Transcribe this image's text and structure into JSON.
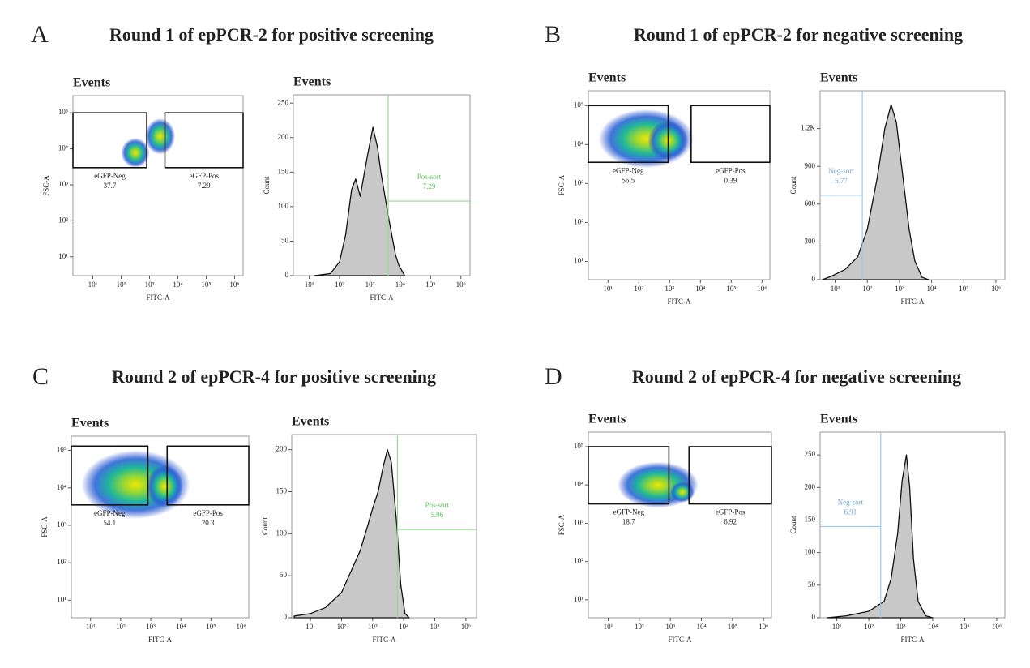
{
  "panels": [
    {
      "letter": "A",
      "title": "Round 1 of epPCR-2 for positive screening"
    },
    {
      "letter": "B",
      "title": "Round 1 of epPCR-2 for negative screening"
    },
    {
      "letter": "C",
      "title": "Round 2 of epPCR-4 for positive screening"
    },
    {
      "letter": "D",
      "title": "Round 2 of epPCR-4 for negative screening"
    }
  ],
  "chart_data": [
    {
      "type": "density-scatter",
      "title": "Events",
      "xlabel": "FITC-A",
      "ylabel": "FSC-A",
      "xscale": "log",
      "yscale": "log",
      "xlim": [
        2,
        2000000
      ],
      "ylim": [
        3,
        300000
      ],
      "xticks": [
        {
          "value": 10,
          "label": "10¹"
        },
        {
          "value": 100,
          "label": "10²"
        },
        {
          "value": 1000,
          "label": "10³"
        },
        {
          "value": 10000,
          "label": "10⁴"
        },
        {
          "value": 100000,
          "label": "10⁵"
        },
        {
          "value": 1000000,
          "label": "10⁶"
        }
      ],
      "yticks": [
        {
          "value": 10,
          "label": "10¹"
        },
        {
          "value": 100,
          "label": "10²"
        },
        {
          "value": 1000,
          "label": "10³"
        },
        {
          "value": 10000,
          "label": "10⁴"
        },
        {
          "value": 100000,
          "label": "10⁵"
        }
      ],
      "clouds": [
        {
          "x": [
            100,
            1000
          ],
          "y": [
            3000,
            20000
          ]
        },
        {
          "x": [
            700,
            8000
          ],
          "y": [
            7000,
            70000
          ]
        }
      ],
      "gates": [
        {
          "name": "eGFP-Neg",
          "value": 37.7,
          "x": [
            2,
            800
          ],
          "y": [
            3000,
            100000
          ]
        },
        {
          "name": "eGFP-Pos",
          "value": 7.29,
          "x": [
            3500,
            2000000
          ],
          "y": [
            3000,
            100000
          ]
        }
      ]
    },
    {
      "type": "area",
      "title": "Events",
      "xlabel": "FITC-A",
      "ylabel": "Count",
      "xscale": "log",
      "color": "#c8c8c8",
      "xlim": [
        3,
        2000000
      ],
      "ylim": [
        0,
        262
      ],
      "xticks": [
        {
          "value": 10,
          "label": "10¹"
        },
        {
          "value": 100,
          "label": "10²"
        },
        {
          "value": 1000,
          "label": "10³"
        },
        {
          "value": 10000,
          "label": "10⁴"
        },
        {
          "value": 100000,
          "label": "10⁵"
        },
        {
          "value": 1000000,
          "label": "10⁶"
        }
      ],
      "yticks": [
        0,
        50,
        100,
        150,
        200,
        250
      ],
      "x": [
        15,
        50,
        100,
        160,
        250,
        340,
        480,
        800,
        1260,
        1800,
        2300,
        4300,
        7000,
        9000,
        14000
      ],
      "values": [
        0,
        3,
        20,
        60,
        125,
        140,
        115,
        170,
        215,
        185,
        150,
        80,
        30,
        15,
        0
      ],
      "gate": {
        "name": "Pos-sort",
        "value": 7.29,
        "x": 4000,
        "y": 108,
        "color": "#8fdc8f",
        "side": "right"
      }
    },
    {
      "type": "density-scatter",
      "title": "Events",
      "xlabel": "FITC-A",
      "ylabel": "FSC-A",
      "xscale": "log",
      "yscale": "log",
      "xlim": [
        2.3,
        1800000
      ],
      "ylim": [
        3.4,
        240000
      ],
      "xticks": [
        {
          "value": 10,
          "label": "10¹"
        },
        {
          "value": 100,
          "label": "10²"
        },
        {
          "value": 1000,
          "label": "10³"
        },
        {
          "value": 10000,
          "label": "10⁴"
        },
        {
          "value": 100000,
          "label": "10⁵"
        },
        {
          "value": 1000000,
          "label": "10⁶"
        }
      ],
      "yticks": [
        {
          "value": 10,
          "label": "10¹"
        },
        {
          "value": 100,
          "label": "10²"
        },
        {
          "value": 1000,
          "label": "10³"
        },
        {
          "value": 10000,
          "label": "10⁴"
        },
        {
          "value": 100000,
          "label": "10⁵"
        }
      ],
      "clouds": [
        {
          "x": [
            5,
            6000
          ],
          "y": [
            2500,
            80000
          ]
        },
        {
          "x": [
            200,
            4000
          ],
          "y": [
            4000,
            40000
          ]
        }
      ],
      "gates": [
        {
          "name": "eGFP-Neg",
          "value": 56.5,
          "x": [
            2.3,
            900
          ],
          "y": [
            3500,
            100000
          ]
        },
        {
          "name": "eGFP-Pos",
          "value": 0.39,
          "x": [
            5000,
            1800000
          ],
          "y": [
            3500,
            100000
          ]
        }
      ]
    },
    {
      "type": "area",
      "title": "Events",
      "xlabel": "FITC-A",
      "ylabel": "Count",
      "xscale": "log",
      "color": "#c8c8c8",
      "xlim": [
        3.4,
        1900000
      ],
      "ylim": [
        0,
        1500
      ],
      "xticks": [
        {
          "value": 10,
          "label": "10¹"
        },
        {
          "value": 100,
          "label": "10²"
        },
        {
          "value": 1000,
          "label": "10³"
        },
        {
          "value": 10000,
          "label": "10⁴"
        },
        {
          "value": 100000,
          "label": "10⁵"
        },
        {
          "value": 1000000,
          "label": "10⁶"
        }
      ],
      "yticks": [
        0,
        300,
        600,
        900,
        {
          "value": 1200,
          "label": "1.2K"
        }
      ],
      "x": [
        4,
        8,
        20,
        50,
        100,
        200,
        350,
        550,
        800,
        1300,
        2000,
        3000,
        5000,
        8000
      ],
      "values": [
        0,
        30,
        80,
        180,
        400,
        800,
        1200,
        1390,
        1250,
        800,
        400,
        150,
        20,
        0
      ],
      "gate": {
        "name": "Neg-sort",
        "value": 5.77,
        "x": 70,
        "y": 670,
        "color": "#9ec8e8",
        "side": "left"
      }
    },
    {
      "type": "density-scatter",
      "title": "Events",
      "xlabel": "FITC-A",
      "ylabel": "FSC-A",
      "xscale": "log",
      "yscale": "log",
      "xlim": [
        2.3,
        1800000
      ],
      "ylim": [
        3.4,
        240000
      ],
      "xticks": [
        {
          "value": 10,
          "label": "10¹"
        },
        {
          "value": 100,
          "label": "10²"
        },
        {
          "value": 1000,
          "label": "10³"
        },
        {
          "value": 10000,
          "label": "10⁴"
        },
        {
          "value": 100000,
          "label": "10⁵"
        },
        {
          "value": 1000000,
          "label": "10⁶"
        }
      ],
      "yticks": [
        {
          "value": 10,
          "label": "10¹"
        },
        {
          "value": 100,
          "label": "10²"
        },
        {
          "value": 1000,
          "label": "10³"
        },
        {
          "value": 10000,
          "label": "10⁴"
        },
        {
          "value": 100000,
          "label": "10⁵"
        }
      ],
      "clouds": [
        {
          "x": [
            5,
            20000
          ],
          "y": [
            1500,
            100000
          ]
        },
        {
          "x": [
            700,
            12000
          ],
          "y": [
            3000,
            40000
          ]
        }
      ],
      "gates": [
        {
          "name": "eGFP-Neg",
          "value": 54.1,
          "x": [
            2.3,
            800
          ],
          "y": [
            3500,
            130000
          ]
        },
        {
          "name": "eGFP-Pos",
          "value": 20.3,
          "x": [
            3500,
            1800000
          ],
          "y": [
            3500,
            130000
          ]
        }
      ]
    },
    {
      "type": "area",
      "title": "Events",
      "xlabel": "FITC-A",
      "ylabel": "Count",
      "xscale": "log",
      "color": "#c8c8c8",
      "xlim": [
        2.5,
        2200000
      ],
      "ylim": [
        0,
        218
      ],
      "xticks": [
        {
          "value": 10,
          "label": "10¹"
        },
        {
          "value": 100,
          "label": "10²"
        },
        {
          "value": 1000,
          "label": "10³"
        },
        {
          "value": 10000,
          "label": "10⁴"
        },
        {
          "value": 100000,
          "label": "10⁵"
        },
        {
          "value": 1000000,
          "label": "10⁶"
        }
      ],
      "yticks": [
        0,
        50,
        100,
        150,
        200
      ],
      "x": [
        3,
        10,
        30,
        100,
        200,
        400,
        700,
        1000,
        1500,
        2200,
        3000,
        4000,
        6000,
        8000,
        11000,
        15000
      ],
      "values": [
        2,
        5,
        12,
        30,
        55,
        80,
        110,
        130,
        150,
        180,
        200,
        185,
        110,
        40,
        5,
        0
      ],
      "gate": {
        "name": "Pos-sort",
        "value": 5.96,
        "x": 6300,
        "y": 105,
        "color": "#8fdc8f",
        "side": "right"
      }
    },
    {
      "type": "density-scatter",
      "title": "Events",
      "xlabel": "FITC-A",
      "ylabel": "FSC-A",
      "xscale": "log",
      "yscale": "log",
      "xlim": [
        2.3,
        1800000
      ],
      "ylim": [
        3.4,
        240000
      ],
      "xticks": [
        {
          "value": 10,
          "label": "10¹"
        },
        {
          "value": 100,
          "label": "10²"
        },
        {
          "value": 1000,
          "label": "10³"
        },
        {
          "value": 10000,
          "label": "10⁴"
        },
        {
          "value": 100000,
          "label": "10⁵"
        },
        {
          "value": 1000000,
          "label": "10⁶"
        }
      ],
      "yticks": [
        {
          "value": 10,
          "label": "10¹"
        },
        {
          "value": 100,
          "label": "10²"
        },
        {
          "value": 1000,
          "label": "10³"
        },
        {
          "value": 10000,
          "label": "10⁴"
        },
        {
          "value": 100000,
          "label": "10⁵"
        }
      ],
      "clouds": [
        {
          "x": [
            20,
            8000
          ],
          "y": [
            2500,
            40000
          ]
        },
        {
          "x": [
            1000,
            6000
          ],
          "y": [
            3500,
            12000
          ]
        }
      ],
      "gates": [
        {
          "name": "eGFP-Neg",
          "value": 18.7,
          "x": [
            2.3,
            900
          ],
          "y": [
            3200,
            100000
          ]
        },
        {
          "name": "eGFP-Pos",
          "value": 6.92,
          "x": [
            4000,
            1800000
          ],
          "y": [
            3200,
            100000
          ]
        }
      ]
    },
    {
      "type": "area",
      "title": "Events",
      "xlabel": "FITC-A",
      "ylabel": "Count",
      "xscale": "log",
      "color": "#c8c8c8",
      "xlim": [
        3,
        1800000
      ],
      "ylim": [
        0,
        285
      ],
      "xticks": [
        {
          "value": 10,
          "label": "10¹"
        },
        {
          "value": 100,
          "label": "10²"
        },
        {
          "value": 1000,
          "label": "10³"
        },
        {
          "value": 10000,
          "label": "10⁴"
        },
        {
          "value": 100000,
          "label": "10⁵"
        },
        {
          "value": 1000000,
          "label": "10⁶"
        }
      ],
      "yticks": [
        0,
        50,
        100,
        150,
        200,
        250
      ],
      "x": [
        5,
        20,
        100,
        300,
        500,
        800,
        1100,
        1500,
        1900,
        2500,
        3500,
        6000,
        10000
      ],
      "values": [
        0,
        3,
        10,
        25,
        60,
        130,
        210,
        250,
        200,
        90,
        25,
        3,
        0
      ],
      "gate": {
        "name": "Neg-sort",
        "value": 6.91,
        "x": 235,
        "y": 140,
        "color": "#9ec8e8",
        "side": "left"
      }
    }
  ]
}
